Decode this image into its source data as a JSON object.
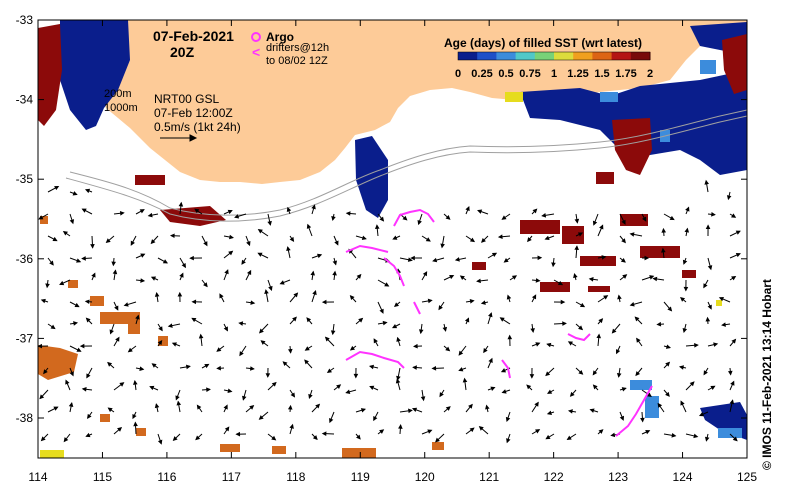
{
  "header": {
    "date": "07-Feb-2021",
    "time": "20Z"
  },
  "legend_argo": {
    "argo_label": "Argo",
    "drifters_line1": "drifters@12h",
    "drifters_line2": "to 08/02 12Z",
    "argo_symbol": "⊗",
    "drifter_symbol": "<"
  },
  "contours": {
    "c200": "200m",
    "c1000": "1000m"
  },
  "current_info": {
    "line1": "NRT00 GSL",
    "line2": "07-Feb 12:00Z",
    "line3": "0.5m/s (1kt 24h)"
  },
  "colorbar": {
    "title": "Age (days) of filled SST (wrt latest)",
    "ticks": [
      "0",
      "0.25",
      "0.5",
      "0.75",
      "1",
      "1.25",
      "1.5",
      "1.75",
      "2"
    ],
    "colors": [
      "#0a1e8c",
      "#1e50c8",
      "#3c8cdc",
      "#50c8c8",
      "#78d278",
      "#dcdc3c",
      "#f0a01e",
      "#dc6414",
      "#b41414",
      "#780a0a"
    ]
  },
  "axes": {
    "x_ticks": [
      "114",
      "115",
      "116",
      "117",
      "118",
      "119",
      "120",
      "121",
      "122",
      "123",
      "124",
      "125"
    ],
    "y_ticks": [
      "-33",
      "-34",
      "-35",
      "-36",
      "-37",
      "-38"
    ]
  },
  "credit": "© IMOS 11-Feb-2021 13:14 Hobart",
  "colors": {
    "land": "#fdcb98",
    "ocean": "#ffffff",
    "drifter": "#ff33ff",
    "deep_blue": "#0a1e8c",
    "dark_red": "#8c0a0a",
    "orange": "#d2691e"
  }
}
